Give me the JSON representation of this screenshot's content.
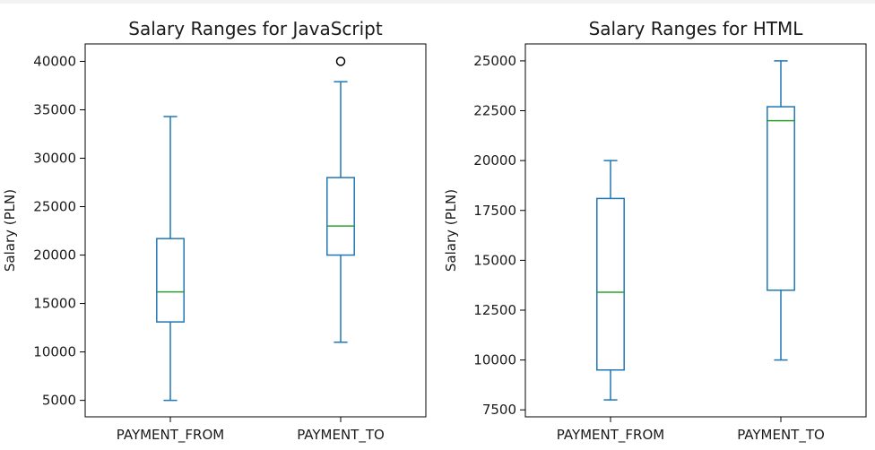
{
  "chart_data": [
    {
      "type": "box",
      "title": "Salary Ranges for JavaScript",
      "xlabel": "",
      "ylabel": "Salary (PLN)",
      "ylim": [
        3300,
        41800
      ],
      "yticks": [
        5000,
        10000,
        15000,
        20000,
        25000,
        30000,
        35000,
        40000
      ],
      "grid": false,
      "colors": {
        "box": "#1f77b4",
        "median": "#2ca02c",
        "flier": "#000000"
      },
      "boxes": [
        {
          "category": "PAYMENT_FROM",
          "whisker_low": 5000,
          "q1": 13100,
          "median": 16200,
          "q3": 21700,
          "whisker_high": 34300,
          "fliers": []
        },
        {
          "category": "PAYMENT_TO",
          "whisker_low": 11000,
          "q1": 20000,
          "median": 23000,
          "q3": 28000,
          "whisker_high": 37900,
          "fliers": [
            40000
          ]
        }
      ]
    },
    {
      "type": "box",
      "title": "Salary Ranges for HTML",
      "xlabel": "",
      "ylabel": "Salary (PLN)",
      "ylim": [
        7150,
        25850
      ],
      "yticks": [
        7500,
        10000,
        12500,
        15000,
        17500,
        20000,
        22500,
        25000
      ],
      "grid": false,
      "colors": {
        "box": "#1f77b4",
        "median": "#2ca02c",
        "flier": "#000000"
      },
      "boxes": [
        {
          "category": "PAYMENT_FROM",
          "whisker_low": 8000,
          "q1": 9500,
          "median": 13400,
          "q3": 18100,
          "whisker_high": 20000,
          "fliers": []
        },
        {
          "category": "PAYMENT_TO",
          "whisker_low": 10000,
          "q1": 13500,
          "median": 22000,
          "q3": 22700,
          "whisker_high": 25000,
          "fliers": []
        }
      ]
    }
  ]
}
